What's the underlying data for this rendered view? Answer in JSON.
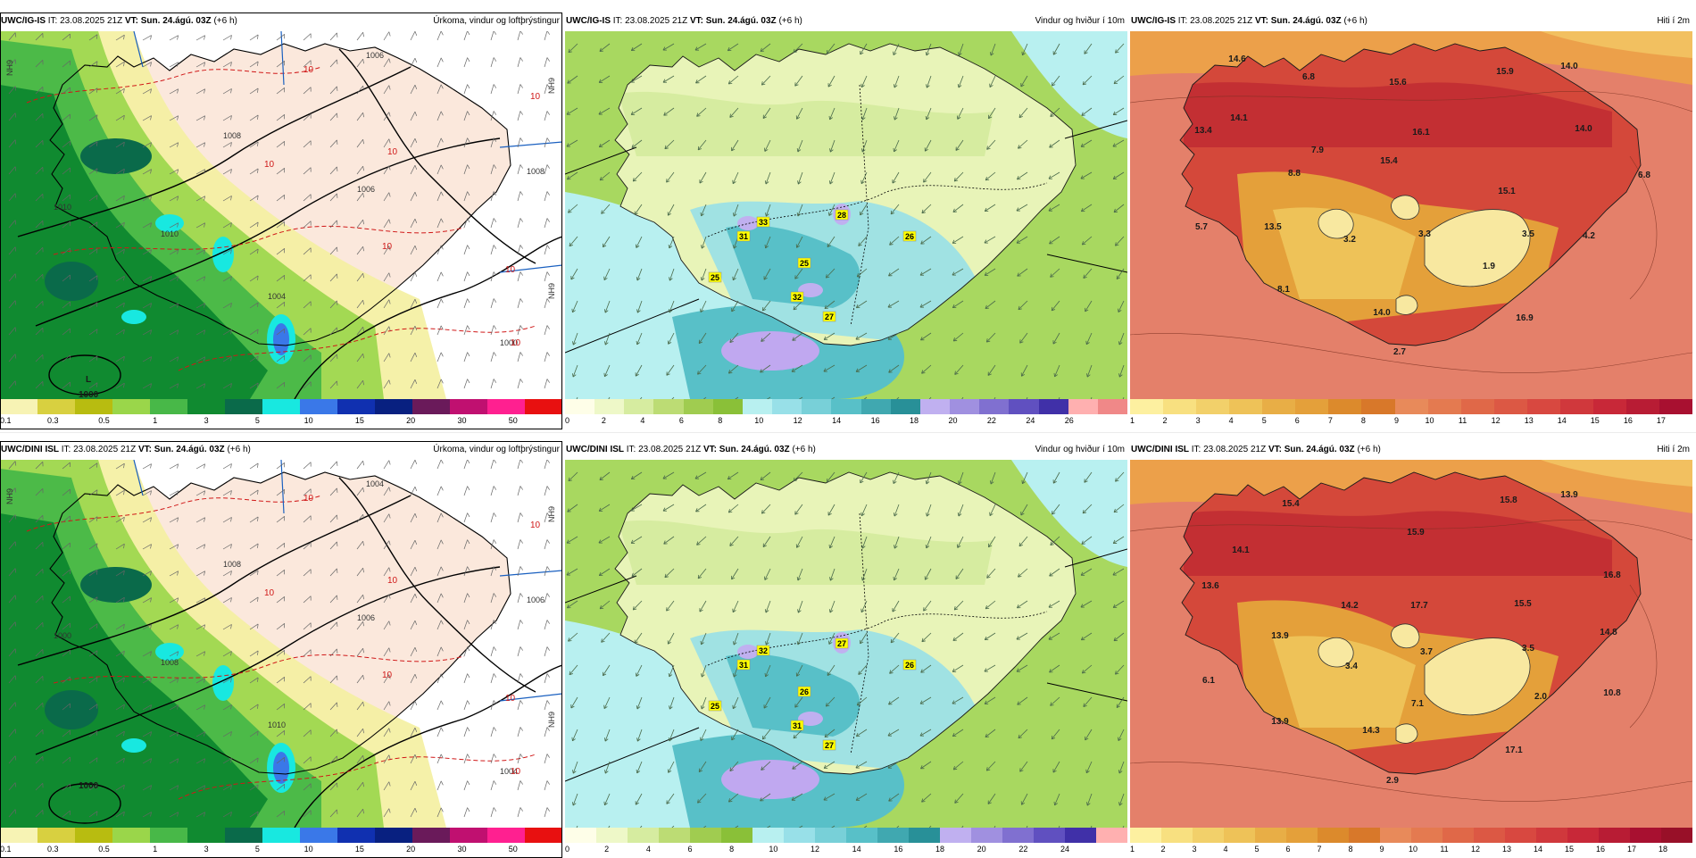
{
  "rows": [
    {
      "model": "UWC/IG-IS",
      "panels": [
        {
          "kind": "precip",
          "model": "UWC/IG-IS",
          "it_label": "IT:",
          "it": "23.08.2025 21Z",
          "vt_label": "VT:",
          "vt": "Sun. 24.ágú. 03Z",
          "lead": "(+6 h)",
          "title": "Úrkoma, vindur og loftþrýstingur",
          "colorbar": {
            "colors": [
              "#f7f3b4",
              "#d8d040",
              "#b8bc10",
              "#9ad64a",
              "#48b848",
              "#108a30",
              "#0a6a4a",
              "#18e8e0",
              "#3a78e8",
              "#1030b0",
              "#082080",
              "#6a1a5a",
              "#c01070",
              "#ff2090",
              "#e81010"
            ],
            "ticks": [
              "0.1",
              "0.3",
              "0.5",
              "1",
              "3",
              "5",
              "10",
              "15",
              "20",
              "30",
              "50"
            ]
          },
          "isobars": [
            "1006",
            "1008",
            "1010",
            "1004",
            "1000",
            "1006",
            "1010",
            "1008"
          ],
          "red_labels": [
            "10",
            "10",
            "10",
            "10",
            "10",
            "10",
            "10"
          ],
          "low_label": "L",
          "low_value": "1000",
          "edge_labels": [
            "NH9",
            "NH9",
            "NH9"
          ]
        },
        {
          "kind": "wind",
          "model": "UWC/IG-IS",
          "it_label": "IT:",
          "it": "23.08.2025 21Z",
          "vt_label": "VT:",
          "vt": "Sun. 24.ágú. 03Z",
          "lead": "(+6 h)",
          "title": "Vindur og hviður í 10m",
          "colorbar": {
            "colors": [
              "#fefee8",
              "#eef8c8",
              "#d6eca0",
              "#bcdc74",
              "#a0cc50",
              "#8ac038",
              "#b8f0f0",
              "#98e0e8",
              "#78d0d8",
              "#58c0c8",
              "#40a8b0",
              "#289098",
              "#c0b0f0",
              "#a090e0",
              "#8070d0",
              "#6050c0",
              "#4030a8",
              "#ffb0b0",
              "#f08888"
            ],
            "ticks": [
              "0",
              "2",
              "4",
              "6",
              "8",
              "10",
              "12",
              "14",
              "16",
              "18",
              "20",
              "22",
              "24",
              "26"
            ]
          },
          "gust_labels": [
            "31",
            "33",
            "28",
            "26",
            "25",
            "25",
            "32",
            "27"
          ]
        },
        {
          "kind": "temp",
          "model": "UWC/IG-IS",
          "it_label": "IT:",
          "it": "23.08.2025 21Z",
          "vt_label": "VT:",
          "vt": "Sun. 24.ágú. 03Z",
          "lead": "(+6 h)",
          "title": "Hiti í 2m",
          "colorbar": {
            "colors": [
              "#fdf0a0",
              "#f8e080",
              "#f2d06a",
              "#eec258",
              "#e8ae46",
              "#e4a03a",
              "#dc8a2c",
              "#d8782a",
              "#e88a5a",
              "#e47a50",
              "#e06848",
              "#dc5844",
              "#d84840",
              "#d0383c",
              "#c82838",
              "#b81c34",
              "#a81030"
            ],
            "ticks": [
              "1",
              "2",
              "3",
              "4",
              "5",
              "6",
              "7",
              "8",
              "9",
              "10",
              "11",
              "12",
              "13",
              "14",
              "15",
              "16",
              "17"
            ]
          },
          "values": [
            "14.6",
            "6.8",
            "15.6",
            "15.9",
            "14.0",
            "14.1",
            "13.4",
            "7.9",
            "16.1",
            "14.0",
            "8.8",
            "15.4",
            "6.8",
            "15.1",
            "5.7",
            "13.5",
            "3.2",
            "3.3",
            "3.5",
            "4.2",
            "1.9",
            "8.1",
            "14.0",
            "16.9",
            "2.7"
          ]
        }
      ]
    },
    {
      "model": "UWC/DINI ISL",
      "panels": [
        {
          "kind": "precip",
          "model": "UWC/DINI ISL",
          "it_label": "IT:",
          "it": "23.08.2025 21Z",
          "vt_label": "VT:",
          "vt": "Sun. 24.ágú. 03Z",
          "lead": "(+6 h)",
          "title": "Úrkoma, vindur og loftþrýstingur",
          "colorbar": {
            "colors": [
              "#f7f3b4",
              "#d8d040",
              "#b8bc10",
              "#9ad64a",
              "#48b848",
              "#108a30",
              "#0a6a4a",
              "#18e8e0",
              "#3a78e8",
              "#1030b0",
              "#082080",
              "#6a1a5a",
              "#c01070",
              "#ff2090",
              "#e81010"
            ],
            "ticks": [
              "0.1",
              "0.3",
              "0.5",
              "1",
              "3",
              "5",
              "10",
              "15",
              "20",
              "30",
              "50"
            ]
          },
          "isobars": [
            "1004",
            "1006",
            "1008",
            "1010",
            "1004",
            "1006",
            "1000",
            "1008"
          ],
          "red_labels": [
            "10",
            "10",
            "10",
            "10",
            "10",
            "10",
            "10"
          ],
          "low_label": "",
          "low_value": "1000",
          "edge_labels": [
            "NH9",
            "NH9",
            "NH9"
          ]
        },
        {
          "kind": "wind",
          "model": "UWC/DINI ISL",
          "it_label": "IT:",
          "it": "23.08.2025 21Z",
          "vt_label": "VT:",
          "vt": "Sun. 24.ágú. 03Z",
          "lead": "(+6 h)",
          "title": "Vindur og hviður í 10m",
          "colorbar": {
            "colors": [
              "#fefee8",
              "#eef8c8",
              "#d6eca0",
              "#bcdc74",
              "#a0cc50",
              "#8ac038",
              "#b8f0f0",
              "#98e0e8",
              "#78d0d8",
              "#58c0c8",
              "#40a8b0",
              "#289098",
              "#c0b0f0",
              "#a090e0",
              "#8070d0",
              "#6050c0",
              "#4030a8",
              "#ffb0b0"
            ],
            "ticks": [
              "0",
              "2",
              "4",
              "6",
              "8",
              "10",
              "12",
              "14",
              "16",
              "18",
              "20",
              "22",
              "24"
            ]
          },
          "gust_labels": [
            "31",
            "32",
            "27",
            "26",
            "25",
            "26",
            "31",
            "27"
          ]
        },
        {
          "kind": "temp",
          "model": "UWC/DINI ISL",
          "it_label": "IT:",
          "it": "23.08.2025 21Z",
          "vt_label": "VT:",
          "vt": "Sun. 24.ágú. 03Z",
          "lead": "(+6 h)",
          "title": "Hiti í 2m",
          "colorbar": {
            "colors": [
              "#fdf0a0",
              "#f8e080",
              "#f2d06a",
              "#eec258",
              "#e8ae46",
              "#e4a03a",
              "#dc8a2c",
              "#d8782a",
              "#e88a5a",
              "#e47a50",
              "#e06848",
              "#dc5844",
              "#d84840",
              "#d0383c",
              "#c82838",
              "#b81c34",
              "#a81030",
              "#981028"
            ],
            "ticks": [
              "1",
              "2",
              "3",
              "4",
              "5",
              "6",
              "7",
              "8",
              "9",
              "10",
              "11",
              "12",
              "13",
              "14",
              "15",
              "16",
              "17",
              "18"
            ]
          },
          "values": [
            "15.4",
            "15.8",
            "13.9",
            "14.1",
            "13.6",
            "15.9",
            "16.8",
            "14.2",
            "17.7",
            "15.5",
            "14.8",
            "13.9",
            "6.1",
            "3.4",
            "3.7",
            "3.5",
            "10.8",
            "2.0",
            "13.9",
            "7.1",
            "14.3",
            "17.1",
            "2.9"
          ]
        }
      ]
    }
  ]
}
